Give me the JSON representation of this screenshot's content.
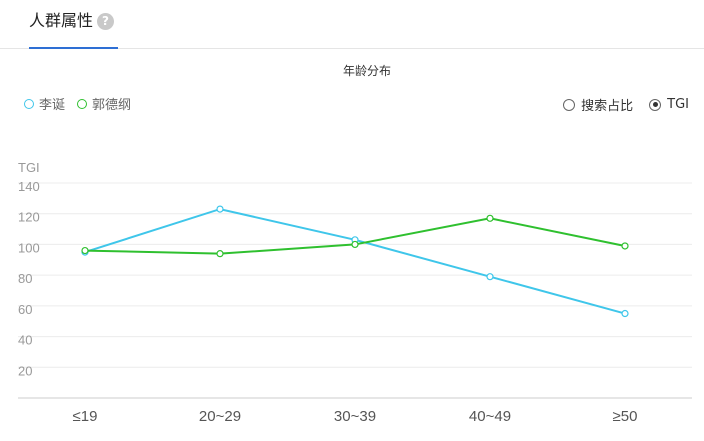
{
  "tab": {
    "label": "人群属性",
    "help_icon": "?"
  },
  "chart_title": "年龄分布",
  "legend": [
    {
      "label": "李诞",
      "color": "#3fc6ea"
    },
    {
      "label": "郭德纲",
      "color": "#2fc02f"
    }
  ],
  "mode_options": [
    {
      "label": "搜索占比",
      "checked": false
    },
    {
      "label": "TGI",
      "checked": true
    }
  ],
  "chart_data": {
    "type": "line",
    "title": "年龄分布",
    "ylabel": "TGI",
    "xlabel": "",
    "categories": [
      "≤19",
      "20~29",
      "30~39",
      "40~49",
      "≥50"
    ],
    "yticks": [
      20,
      40,
      60,
      80,
      100,
      120,
      140
    ],
    "ylim": [
      0,
      140
    ],
    "grid": true,
    "legend_position": "top-left",
    "series": [
      {
        "name": "李诞",
        "color": "#3fc6ea",
        "values": [
          95,
          123,
          103,
          79,
          55
        ]
      },
      {
        "name": "郭德纲",
        "color": "#2fc02f",
        "values": [
          96,
          94,
          100,
          117,
          99
        ]
      }
    ]
  }
}
